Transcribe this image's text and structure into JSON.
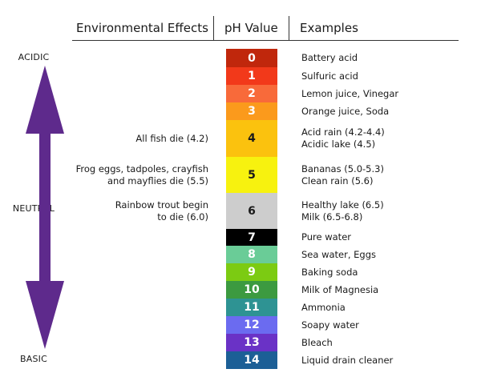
{
  "headers": {
    "effects": "Environmental Effects",
    "ph": "pH Value",
    "examples": "Examples"
  },
  "side_labels": {
    "acidic": "ACIDIC",
    "neutral": "NEUTRAL",
    "basic": "BASIC"
  },
  "arrow_color": "#5e2a8c",
  "scale": [
    {
      "value": "0",
      "color": "#c0270c",
      "text": "light",
      "example_lines": [
        "Battery acid"
      ],
      "effect_lines": []
    },
    {
      "value": "1",
      "color": "#f2391a",
      "text": "light",
      "example_lines": [
        "Sulfuric acid"
      ],
      "effect_lines": []
    },
    {
      "value": "2",
      "color": "#f86a3a",
      "text": "light",
      "example_lines": [
        "Lemon juice, Vinegar"
      ],
      "effect_lines": []
    },
    {
      "value": "3",
      "color": "#fb9a1c",
      "text": "light",
      "example_lines": [
        "Orange juice, Soda"
      ],
      "effect_lines": []
    },
    {
      "value": "4",
      "color": "#fbc20e",
      "text": "dark",
      "example_lines": [
        "Acid rain (4.2-4.4)",
        "Acidic lake (4.5)"
      ],
      "effect_lines": [
        "All fish die (4.2)"
      ]
    },
    {
      "value": "5",
      "color": "#f7f20f",
      "text": "dark",
      "example_lines": [
        "Bananas (5.0-5.3)",
        "Clean rain (5.6)"
      ],
      "effect_lines": [
        "Frog eggs, tadpoles, crayfish",
        "and mayflies die (5.5)"
      ]
    },
    {
      "value": "6",
      "color": "#cdcdcd",
      "text": "dark",
      "example_lines": [
        "Healthy lake (6.5)",
        "Milk (6.5-6.8)"
      ],
      "effect_lines": [
        "Rainbow trout begin",
        "to die (6.0)"
      ]
    },
    {
      "value": "7",
      "color": "#000000",
      "text": "light",
      "example_lines": [
        "Pure water"
      ],
      "effect_lines": []
    },
    {
      "value": "8",
      "color": "#6acc97",
      "text": "light",
      "example_lines": [
        "Sea water, Eggs"
      ],
      "effect_lines": []
    },
    {
      "value": "9",
      "color": "#7ccb12",
      "text": "light",
      "example_lines": [
        "Baking soda"
      ],
      "effect_lines": []
    },
    {
      "value": "10",
      "color": "#3c9a40",
      "text": "light",
      "example_lines": [
        "Milk of Magnesia"
      ],
      "effect_lines": []
    },
    {
      "value": "11",
      "color": "#2e9393",
      "text": "light",
      "example_lines": [
        "Ammonia"
      ],
      "effect_lines": []
    },
    {
      "value": "12",
      "color": "#6b6bf0",
      "text": "light",
      "example_lines": [
        "Soapy water"
      ],
      "effect_lines": []
    },
    {
      "value": "13",
      "color": "#6a32c6",
      "text": "light",
      "example_lines": [
        "Bleach"
      ],
      "effect_lines": []
    },
    {
      "value": "14",
      "color": "#1c5f96",
      "text": "light",
      "example_lines": [
        "Liquid drain cleaner"
      ],
      "effect_lines": []
    }
  ]
}
